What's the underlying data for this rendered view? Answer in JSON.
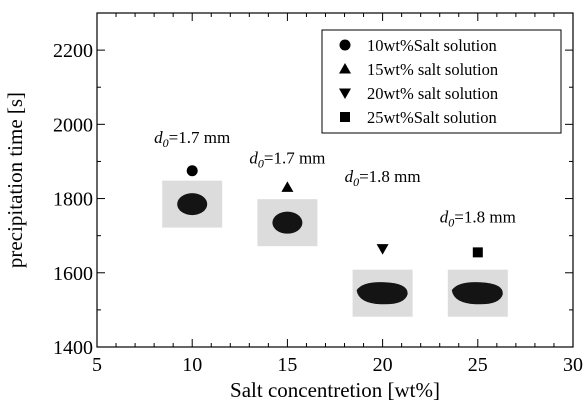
{
  "chart_data": {
    "type": "scatter",
    "title": "",
    "xlabel": "Salt concentretion [wt%]",
    "ylabel": "precipitation time [s]",
    "xlim": [
      5,
      30
    ],
    "ylim": [
      1400,
      2300
    ],
    "xticks": [
      5,
      10,
      15,
      20,
      25,
      30
    ],
    "yticks": [
      1400,
      1600,
      1800,
      2000,
      2200
    ],
    "grid": false,
    "legend_position": "top-right",
    "series": [
      {
        "name": "10wt%Salt solution",
        "marker": "circle",
        "x": [
          10
        ],
        "y": [
          1875
        ]
      },
      {
        "name": "15wt% salt solution",
        "marker": "triangle-up",
        "x": [
          15
        ],
        "y": [
          1830
        ]
      },
      {
        "name": "20wt% salt solution",
        "marker": "triangle-down",
        "x": [
          20
        ],
        "y": [
          1665
        ]
      },
      {
        "name": "25wt%Salt solution",
        "marker": "square",
        "x": [
          25
        ],
        "y": [
          1655
        ]
      }
    ],
    "annotations": [
      {
        "prefix": "d",
        "subscript": "0",
        "text": "=1.7 mm",
        "x": 10,
        "y": 1950
      },
      {
        "prefix": "d",
        "subscript": "0",
        "text": "=1.7 mm",
        "x": 15,
        "y": 1895
      },
      {
        "prefix": "d",
        "subscript": "0",
        "text": "=1.8 mm",
        "x": 20,
        "y": 1845
      },
      {
        "prefix": "d",
        "subscript": "0",
        "text": "=1.8 mm",
        "x": 25,
        "y": 1735
      }
    ],
    "droplet_images": [
      {
        "series": "10wt%Salt solution",
        "x": 10,
        "y": 1785,
        "shape": "round"
      },
      {
        "series": "15wt% salt solution",
        "x": 15,
        "y": 1735,
        "shape": "round"
      },
      {
        "series": "20wt% salt solution",
        "x": 20,
        "y": 1545,
        "shape": "flat"
      },
      {
        "series": "25wt%Salt solution",
        "x": 25,
        "y": 1545,
        "shape": "flat"
      }
    ]
  }
}
